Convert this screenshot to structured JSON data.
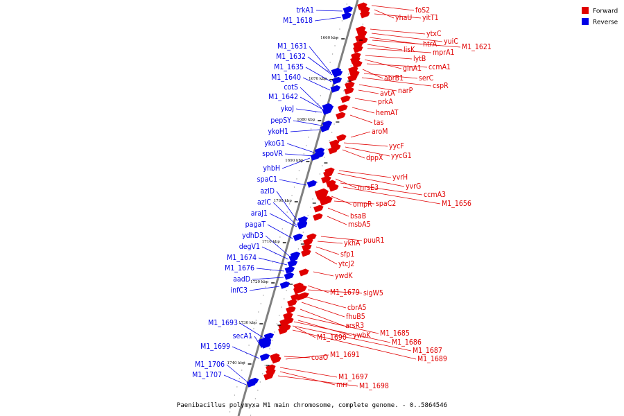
{
  "caption": "Paenibacillus polymyxa M1 main chromosome, complete genome. - 0..5864546",
  "legend": [
    {
      "label": "Forward",
      "color": "#e00000"
    },
    {
      "label": "Reverse",
      "color": "#0000e6"
    }
  ],
  "colors": {
    "forward": "#e00000",
    "reverse": "#0000e6",
    "axis": "#808080"
  },
  "scale_ticks": [
    "1660 kbp",
    "1670 kbp",
    "1680 kbp",
    "1690 kbp",
    "1700 kbp",
    "1710 kbp",
    "1720 kbp",
    "1730 kbp",
    "1740 kbp"
  ],
  "reverse_genes": [
    "trkA1",
    "M1_1618",
    "M1_1631",
    "M1_1632",
    "M1_1635",
    "M1_1640",
    "cotS",
    "M1_1642",
    "ykoJ",
    "pepSY",
    "ykoH1",
    "ykoG1",
    "spoVR",
    "yhbH",
    "spaC1",
    "azlD",
    "azlC",
    "araJ1",
    "pagaT",
    "ydhD3",
    "degV1",
    "M1_1674",
    "M1_1676",
    "aadD",
    "infC3",
    "M1_1693",
    "secA1",
    "M1_1699",
    "M1_1706",
    "M1_1707"
  ],
  "forward_genes": [
    "foS2",
    "yhaU",
    "yitT1",
    "ytxC",
    "yuiC",
    "htrA",
    "M1_1621",
    "lisK",
    "mprA1",
    "lytB",
    "glnA1",
    "ccmA1",
    "abrB1",
    "serC",
    "cspR",
    "narP",
    "avtA",
    "prkA",
    "hemAT",
    "tas",
    "aroM",
    "yycF",
    "yycG1",
    "dppX",
    "yvrH",
    "yvrG",
    "mrsE3",
    "ccmA3",
    "M1_1656",
    "ompR",
    "spaC2",
    "bsaB",
    "msbA5",
    "puuR1",
    "ykhA",
    "sfp1",
    "ytcJ2",
    "ywdK",
    "M1_1679",
    "sigW5",
    "cbrA5",
    "fhuB5",
    "arsR3",
    "M1_1685",
    "ywbK",
    "M1_1690",
    "M1_1686",
    "M1_1687",
    "M1_1689",
    "coaO",
    "M1_1691",
    "M1_1697",
    "mrr",
    "M1_1698"
  ]
}
